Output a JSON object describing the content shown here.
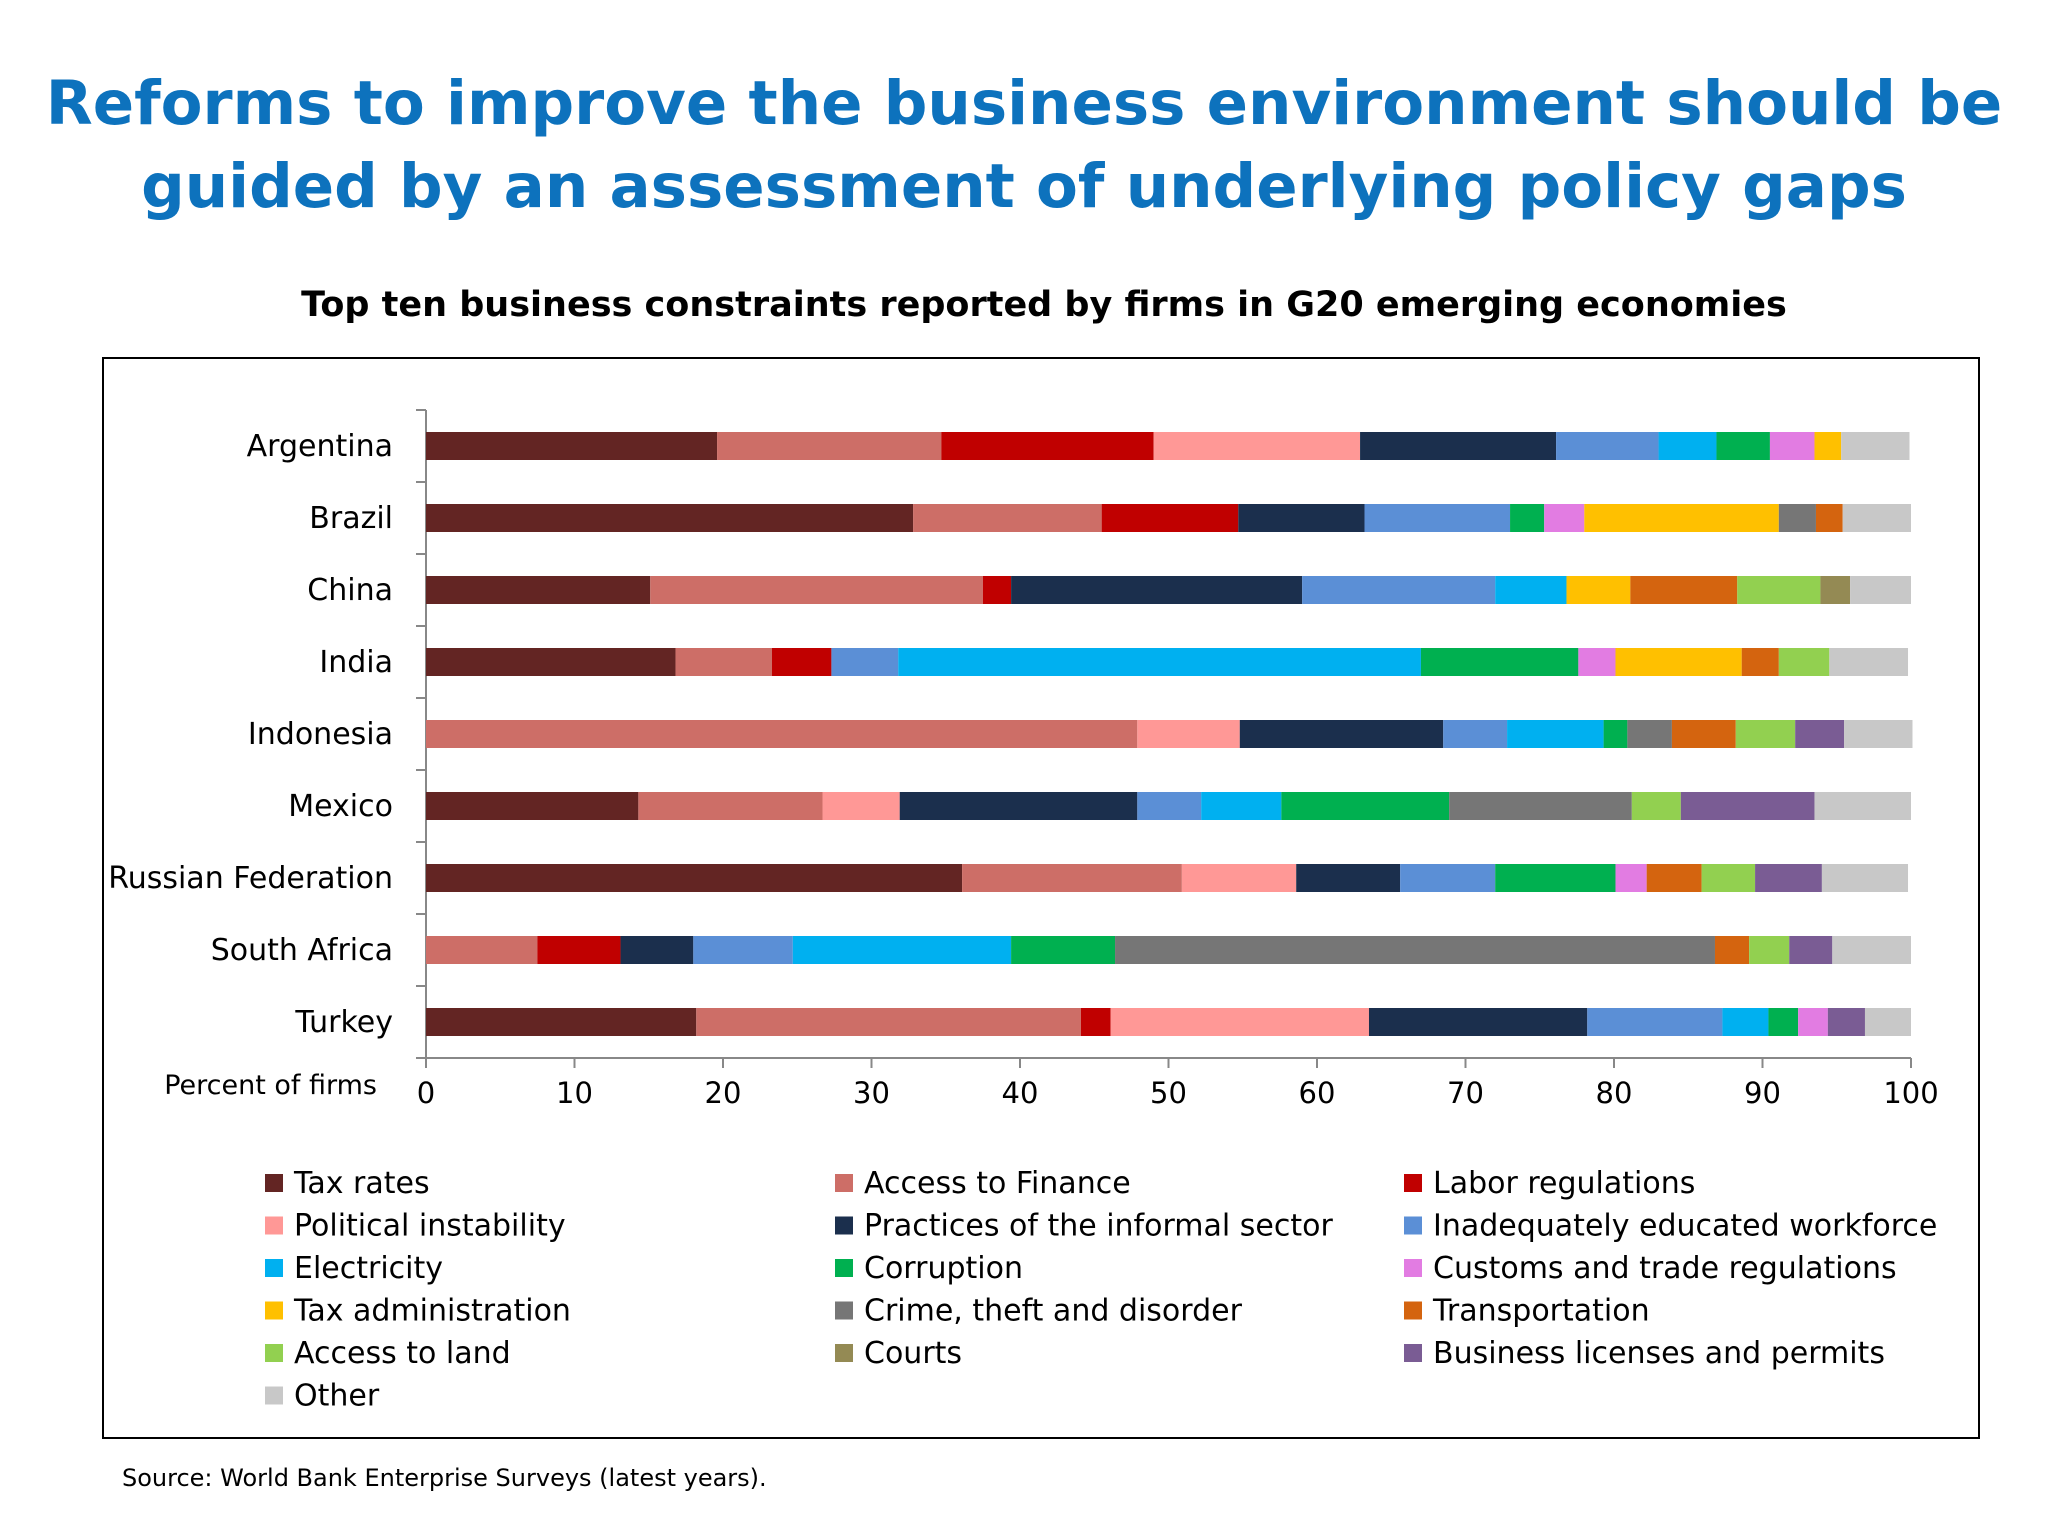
{
  "title_line1": "Reforms to improve the business environment should be",
  "title_line2": "guided by an assessment of underlying policy gaps",
  "source": "Source: World Bank Enterprise Surveys (latest years).",
  "chart_data": {
    "type": "bar",
    "orientation": "horizontal",
    "stacked": true,
    "title": "Top ten business constraints reported by firms in G20 emerging economies",
    "xlabel": "Percent of firms",
    "xlim": [
      0,
      100
    ],
    "xticks": [
      0,
      10,
      20,
      30,
      40,
      50,
      60,
      70,
      80,
      90,
      100
    ],
    "grid": false,
    "legend_position": "bottom",
    "categories": [
      "Argentina",
      "Brazil",
      "China",
      "India",
      "Indonesia",
      "Mexico",
      "Russian Federation",
      "South Africa",
      "Turkey"
    ],
    "series": [
      {
        "name": "Tax rates",
        "color": "#632523",
        "values": [
          19.6,
          32.8,
          15.1,
          16.8,
          0,
          14.3,
          36.1,
          0,
          18.2
        ]
      },
      {
        "name": "Access to Finance",
        "color": "#cd6e67",
        "values": [
          15.1,
          12.7,
          22.4,
          6.5,
          47.9,
          12.4,
          14.8,
          7.5,
          25.9
        ]
      },
      {
        "name": "Labor regulations",
        "color": "#c00000",
        "values": [
          14.3,
          9.2,
          1.9,
          4.0,
          0,
          0,
          0,
          5.6,
          2.0
        ]
      },
      {
        "name": "Political instability",
        "color": "#ff9896",
        "values": [
          13.9,
          0,
          0,
          0,
          6.9,
          5.2,
          7.7,
          0,
          17.4
        ]
      },
      {
        "name": "Practices of the informal sector",
        "color": "#1b2f4d",
        "values": [
          13.2,
          8.5,
          19.6,
          0,
          13.7,
          16.0,
          7.0,
          4.9,
          14.7
        ]
      },
      {
        "name": "Inadequately educated workforce",
        "color": "#5b8fd6",
        "values": [
          6.9,
          9.8,
          13.0,
          4.5,
          4.3,
          4.3,
          6.4,
          6.7,
          9.1
        ]
      },
      {
        "name": "Electricity",
        "color": "#00b0f0",
        "values": [
          3.9,
          0,
          4.8,
          35.2,
          6.5,
          5.4,
          0,
          14.7,
          3.1
        ]
      },
      {
        "name": "Corruption",
        "color": "#00b050",
        "values": [
          3.6,
          2.3,
          0,
          10.6,
          1.6,
          11.3,
          8.1,
          7.0,
          2.0
        ]
      },
      {
        "name": "Customs and trade regulations",
        "color": "#e27ce2",
        "values": [
          3.0,
          2.7,
          0,
          2.5,
          0,
          0,
          2.1,
          0,
          2.0
        ]
      },
      {
        "name": "Tax administration",
        "color": "#ffc000",
        "values": [
          1.8,
          13.1,
          4.3,
          8.5,
          0,
          0,
          0,
          0,
          0
        ]
      },
      {
        "name": "Crime, theft and disorder",
        "color": "#767676",
        "values": [
          0,
          2.5,
          0,
          0,
          3.0,
          12.3,
          0,
          40.4,
          0
        ]
      },
      {
        "name": "Transportation",
        "color": "#d4640f",
        "values": [
          0,
          1.8,
          7.2,
          2.5,
          4.3,
          0,
          3.7,
          2.3,
          0
        ]
      },
      {
        "name": "Access to land",
        "color": "#92d050",
        "values": [
          0,
          0,
          5.6,
          3.4,
          4.0,
          3.3,
          3.6,
          2.7,
          0
        ]
      },
      {
        "name": "Courts",
        "color": "#948a54",
        "values": [
          0,
          0,
          2.0,
          0,
          0,
          0,
          0,
          0,
          0
        ]
      },
      {
        "name": "Business licenses and permits",
        "color": "#7a5c94",
        "values": [
          0,
          0,
          0,
          0,
          3.3,
          9.0,
          4.5,
          2.9,
          2.5
        ]
      },
      {
        "name": "Other",
        "color": "#c8c8c8",
        "values": [
          4.6,
          4.6,
          4.1,
          5.3,
          4.6,
          6.5,
          5.8,
          5.3,
          3.1
        ]
      }
    ]
  }
}
